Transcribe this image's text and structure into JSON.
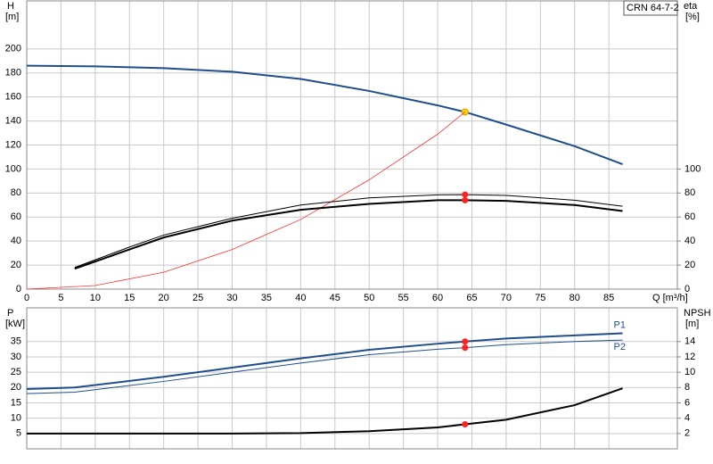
{
  "chart_data": [
    {
      "type": "line",
      "title": "CRN 64-7-2",
      "y_label": "H",
      "y_unit": "[m]",
      "y2_label": "eta",
      "y2_unit": "[%]",
      "x_label": "Q [m³/h]",
      "xlim": [
        0,
        95
      ],
      "xticks": [
        0,
        5,
        10,
        15,
        20,
        25,
        30,
        35,
        40,
        45,
        50,
        55,
        60,
        65,
        70,
        75,
        80,
        85
      ],
      "ylim": [
        0,
        240
      ],
      "yticks": [
        0,
        20,
        40,
        60,
        80,
        100,
        120,
        140,
        160,
        180,
        200
      ],
      "y2lim": [
        0,
        240
      ],
      "y2ticks": [
        0,
        20,
        40,
        60,
        80,
        100
      ],
      "duty_point": {
        "x": 64
      },
      "series": [
        {
          "color": "#1f4e8c",
          "marker_color": "#ffd700",
          "x": [
            0,
            10,
            20,
            30,
            40,
            50,
            60,
            64,
            70,
            80,
            87
          ],
          "values": [
            186,
            185.5,
            184,
            181,
            175,
            165,
            153,
            147.5,
            137,
            119,
            104
          ]
        },
        {
          "color": "#ff3030",
          "x": [
            0,
            10,
            20,
            30,
            40,
            50,
            60,
            64
          ],
          "values": [
            0,
            3,
            14,
            33,
            58,
            91,
            129,
            147.5
          ]
        },
        {
          "color": "#000000",
          "marker_color": "#ff2020",
          "axis": "y2",
          "x": [
            7,
            15,
            20,
            30,
            40,
            50,
            60,
            64,
            70,
            80,
            87
          ],
          "values": [
            18,
            35,
            45,
            59,
            70,
            76,
            78.5,
            78.7,
            78,
            74,
            69
          ]
        },
        {
          "color": "#000000",
          "marker_color": "#ff2020",
          "axis": "y2",
          "x": [
            7,
            15,
            20,
            30,
            40,
            50,
            60,
            64,
            70,
            80,
            87
          ],
          "values": [
            17,
            33,
            43,
            57,
            66,
            71,
            74,
            74,
            73.5,
            70,
            65
          ]
        }
      ]
    },
    {
      "type": "line",
      "y_label": "P",
      "y_unit": "[kW]",
      "y2_label": "NPSH",
      "y2_unit": "[m]",
      "xlim": [
        0,
        95
      ],
      "ylim": [
        0,
        46
      ],
      "yticks": [
        5,
        10,
        15,
        20,
        25,
        30,
        35
      ],
      "y2lim": [
        0,
        18.4
      ],
      "y2ticks": [
        2,
        4,
        6,
        8,
        10,
        12,
        14
      ],
      "duty_point": {
        "x": 64
      },
      "series": [
        {
          "name": "P1",
          "color": "#1f4e8c",
          "marker_color": "#ff2020",
          "x": [
            0,
            7,
            20,
            30,
            40,
            50,
            60,
            64,
            70,
            80,
            87
          ],
          "values": [
            19.5,
            20,
            23.5,
            26.5,
            29.5,
            32.3,
            34.3,
            35,
            36,
            37,
            37.7
          ]
        },
        {
          "name": "P2",
          "color": "#1f4e8c",
          "marker_color": "#ff2020",
          "x": [
            0,
            7,
            20,
            30,
            40,
            50,
            60,
            64,
            70,
            80,
            87
          ],
          "values": [
            18,
            18.5,
            22,
            25,
            28,
            30.7,
            32.5,
            33,
            34,
            35,
            35.5
          ]
        },
        {
          "color": "#000000",
          "marker_color": "#ff2020",
          "axis": "y2",
          "x": [
            0,
            30,
            40,
            50,
            60,
            64,
            70,
            80,
            87
          ],
          "values": [
            2,
            2,
            2.05,
            2.3,
            2.8,
            3.2,
            3.8,
            5.7,
            7.9
          ]
        }
      ]
    }
  ]
}
